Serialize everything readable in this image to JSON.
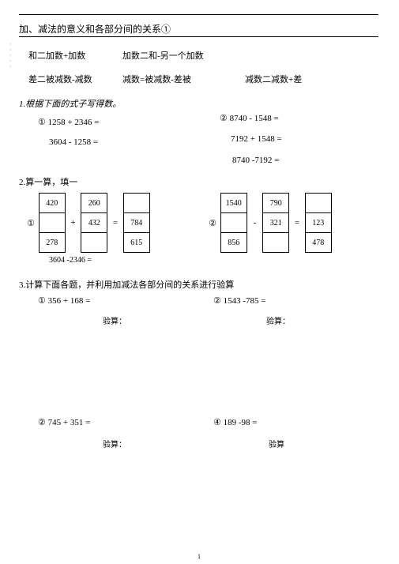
{
  "title": "加、减法的意义和各部分间的关系①",
  "relations": {
    "r1a": "和二加数+加数",
    "r1b": "加数二和-另一个加数",
    "r2a": "差二被减数-减数",
    "r2b": "减数=被减数-差被",
    "r2c": "减数二减数+差"
  },
  "q1": {
    "title": "1.根据下面的式子写得数。",
    "a": "①  1258 + 2346 =",
    "b": "②  8740 - 1548 =",
    "c": "3604 - 1258 =",
    "d": "7192 + 1548 =",
    "e": "8740 -7192 ="
  },
  "q2": {
    "title": "2.算一算，填一",
    "g1": {
      "label": "①",
      "col1": [
        "420",
        "",
        "278"
      ],
      "op1": "+",
      "col2": [
        "260",
        "432",
        ""
      ],
      "op2": "=",
      "col3": [
        "",
        "784",
        "615"
      ],
      "footer": "3604 -2346 ="
    },
    "g2": {
      "label": "②",
      "col1": [
        "1540",
        "",
        "856"
      ],
      "op1": "-",
      "col2": [
        "790",
        "321",
        ""
      ],
      "op2": "=",
      "col3": [
        "",
        "123",
        "478"
      ]
    }
  },
  "q3": {
    "title": "3.计算下面各题，并利用加减法各部分间的关系进行验算",
    "a": "①  356 + 168 =",
    "b": "②  1543 -785 =",
    "c": "②  745 + 351 =",
    "d": "④  189 -98 =",
    "yan1": "验算：",
    "yan2": "验算："
  },
  "pageNum": "1",
  "yan_plain": "验算"
}
